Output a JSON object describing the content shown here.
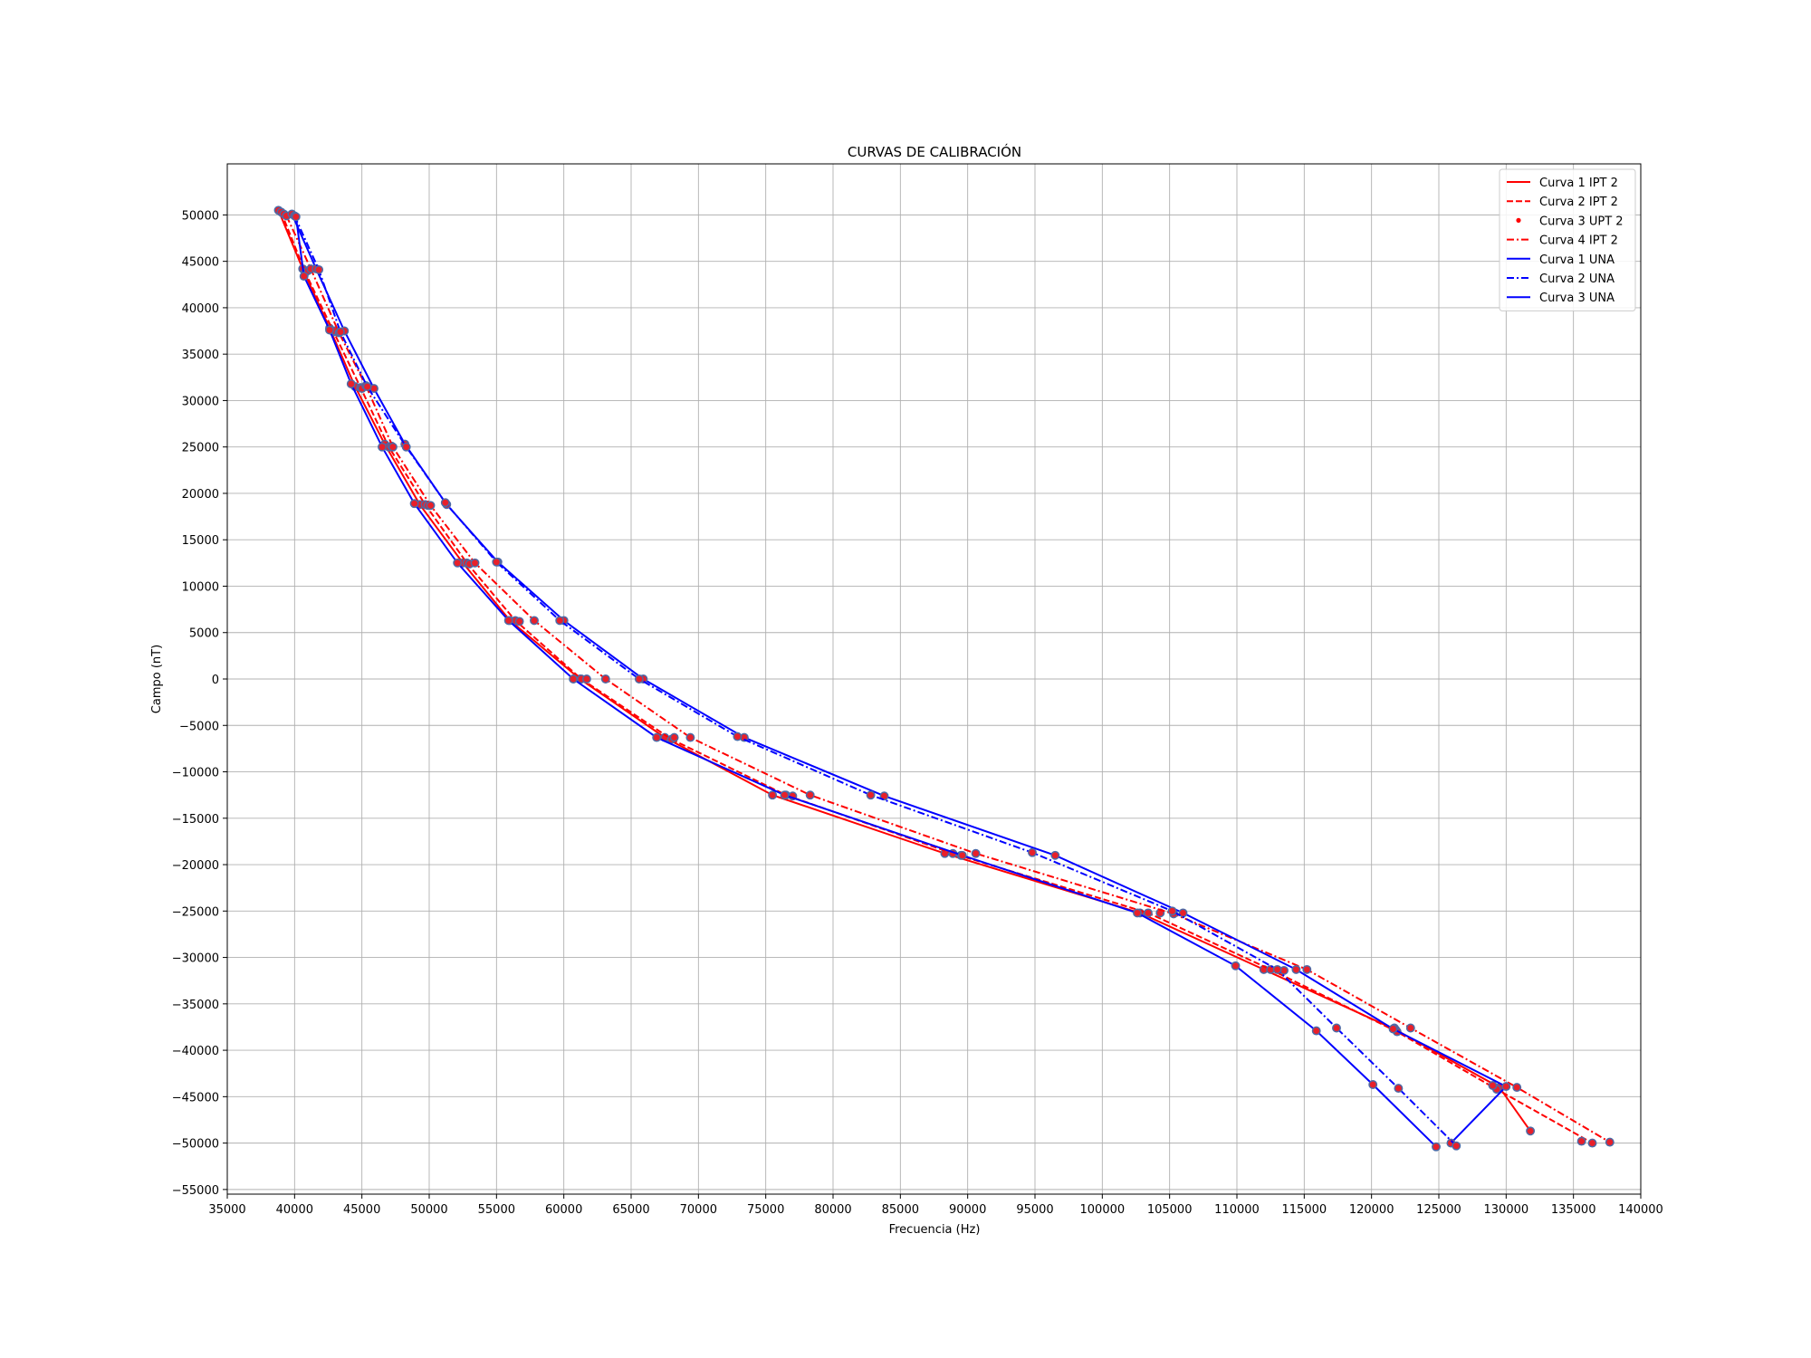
{
  "chart_data": {
    "type": "line",
    "title": "CURVAS DE CALIBRACIÓN",
    "xlabel": "Frecuencia (Hz)",
    "ylabel": "Campo (nT)",
    "xlim": [
      35000,
      140000
    ],
    "ylim": [
      -55500,
      55500
    ],
    "xticks": [
      35000,
      40000,
      45000,
      50000,
      55000,
      60000,
      65000,
      70000,
      75000,
      80000,
      85000,
      90000,
      95000,
      100000,
      105000,
      110000,
      115000,
      120000,
      125000,
      130000,
      135000,
      140000
    ],
    "yticks": [
      50000,
      45000,
      40000,
      35000,
      30000,
      25000,
      20000,
      15000,
      10000,
      5000,
      0,
      -5000,
      -10000,
      -15000,
      -20000,
      -25000,
      -30000,
      -35000,
      -40000,
      -45000,
      -50000,
      -55000
    ],
    "grid": true,
    "legend_position": "top-right",
    "marker_color": "#e8202a",
    "marker_edge_color": "#4c6aa6",
    "series": [
      {
        "name": "Curva 1 IPT 2",
        "color": "#ff0000",
        "dash": "solid",
        "points": [
          [
            38800,
            50500
          ],
          [
            40600,
            44200
          ],
          [
            42600,
            37800
          ],
          [
            44500,
            31500
          ],
          [
            46700,
            25300
          ],
          [
            49300,
            18800
          ],
          [
            52500,
            12500
          ],
          [
            56000,
            6300
          ],
          [
            61200,
            0
          ],
          [
            67500,
            -6300
          ],
          [
            75500,
            -12500
          ],
          [
            88300,
            -18800
          ],
          [
            102800,
            -25200
          ],
          [
            112000,
            -31300
          ],
          [
            121800,
            -37800
          ],
          [
            129500,
            -44000
          ],
          [
            131800,
            -48700
          ]
        ]
      },
      {
        "name": "Curva 2 IPT 2",
        "color": "#ff0000",
        "dash": "dashed",
        "points": [
          [
            39000,
            50300
          ],
          [
            40800,
            43800
          ],
          [
            42900,
            37400
          ],
          [
            44900,
            31400
          ],
          [
            47000,
            25000
          ],
          [
            49700,
            18800
          ],
          [
            52800,
            12500
          ],
          [
            56400,
            6300
          ],
          [
            61300,
            0
          ],
          [
            68000,
            -6500
          ],
          [
            76500,
            -12500
          ],
          [
            88900,
            -18800
          ],
          [
            103400,
            -25200
          ],
          [
            112500,
            -31300
          ],
          [
            121900,
            -38000
          ],
          [
            129300,
            -44200
          ],
          [
            136400,
            -50000
          ]
        ]
      },
      {
        "name": "Curva 3 UPT 2",
        "color": "#ff0000",
        "dash": "dots",
        "points": [
          [
            39200,
            50100
          ],
          [
            41000,
            44000
          ],
          [
            43000,
            37500
          ],
          [
            45000,
            31300
          ],
          [
            47200,
            25100
          ],
          [
            49900,
            18700
          ],
          [
            53000,
            12400
          ],
          [
            56700,
            6200
          ],
          [
            61700,
            0
          ],
          [
            68200,
            -6300
          ],
          [
            77000,
            -12600
          ],
          [
            89500,
            -19000
          ],
          [
            104300,
            -25200
          ],
          [
            113500,
            -31400
          ],
          [
            121700,
            -37600
          ],
          [
            129000,
            -43800
          ],
          [
            135600,
            -49800
          ]
        ]
      },
      {
        "name": "Curva 4 IPT 2",
        "color": "#ff0000",
        "dash": "dashdot",
        "points": [
          [
            39400,
            49900
          ],
          [
            41200,
            44200
          ],
          [
            43300,
            37300
          ],
          [
            45300,
            31600
          ],
          [
            47300,
            25000
          ],
          [
            50100,
            18700
          ],
          [
            53400,
            12500
          ],
          [
            57800,
            6300
          ],
          [
            63100,
            0
          ],
          [
            69400,
            -6300
          ],
          [
            78300,
            -12500
          ],
          [
            90600,
            -18800
          ],
          [
            105300,
            -25300
          ],
          [
            115200,
            -31300
          ],
          [
            122900,
            -37600
          ],
          [
            130800,
            -44000
          ],
          [
            137700,
            -49900
          ]
        ]
      },
      {
        "name": "Curva 1 UNA",
        "color": "#0000ff",
        "dash": "solid",
        "points": [
          [
            39800,
            50100
          ],
          [
            41600,
            44200
          ],
          [
            43700,
            37500
          ],
          [
            45900,
            31300
          ],
          [
            48200,
            25300
          ],
          [
            51300,
            18800
          ],
          [
            55100,
            12600
          ],
          [
            60000,
            6300
          ],
          [
            65900,
            0
          ],
          [
            73400,
            -6300
          ],
          [
            83800,
            -12600
          ],
          [
            96500,
            -19000
          ],
          [
            106000,
            -25200
          ],
          [
            114400,
            -31300
          ],
          [
            121600,
            -37700
          ],
          [
            130000,
            -43900
          ],
          [
            125900,
            -50000
          ]
        ]
      },
      {
        "name": "Curva 2 UNA",
        "color": "#0000ff",
        "dash": "dashdot",
        "points": [
          [
            40000,
            49900
          ],
          [
            41800,
            44100
          ],
          [
            43400,
            37400
          ],
          [
            45400,
            31500
          ],
          [
            48300,
            25000
          ],
          [
            51200,
            19000
          ],
          [
            55000,
            12600
          ],
          [
            59700,
            6300
          ],
          [
            65600,
            0
          ],
          [
            72900,
            -6200
          ],
          [
            82800,
            -12500
          ],
          [
            94800,
            -18700
          ],
          [
            105200,
            -25000
          ],
          [
            113000,
            -31300
          ],
          [
            117400,
            -37600
          ],
          [
            122000,
            -44100
          ],
          [
            126300,
            -50300
          ]
        ]
      },
      {
        "name": "Curva 3 UNA",
        "color": "#0000ff",
        "dash": "solid",
        "points": [
          [
            40100,
            49800
          ],
          [
            40700,
            43400
          ],
          [
            42600,
            37600
          ],
          [
            44200,
            31800
          ],
          [
            46500,
            25000
          ],
          [
            48900,
            18900
          ],
          [
            52100,
            12500
          ],
          [
            55900,
            6300
          ],
          [
            60700,
            0
          ],
          [
            66900,
            -6300
          ],
          [
            76400,
            -12500
          ],
          [
            89600,
            -19000
          ],
          [
            102600,
            -25200
          ],
          [
            109900,
            -30900
          ],
          [
            115900,
            -37900
          ],
          [
            120100,
            -43700
          ],
          [
            124800,
            -50400
          ]
        ]
      }
    ]
  }
}
